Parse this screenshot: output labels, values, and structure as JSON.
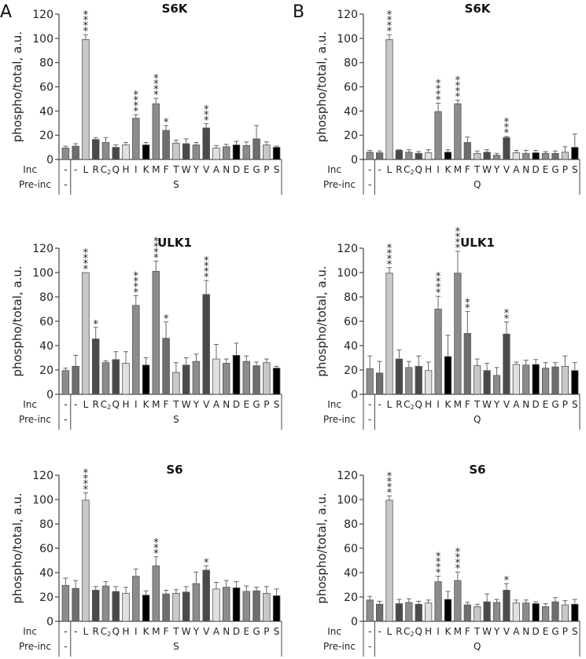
{
  "panels": [
    {
      "letter": "A",
      "pre_inc": "S"
    },
    {
      "letter": "B",
      "pre_inc": "Q"
    }
  ],
  "row_labels": {
    "inc": "Inc",
    "pre_inc": "Pre-inc",
    "control_dash": "-"
  },
  "bar_colors": [
    "#8c8c8c",
    "#6e6e6e",
    "#c8c8c8",
    "#4a4a4a",
    "#8c8c8c",
    "#4a4a4a",
    "#e0e0e0",
    "#8c8c8c",
    "#000000",
    "#8c8c8c",
    "#6e6e6e",
    "#c8c8c8",
    "#4a4a4a",
    "#8c8c8c",
    "#4a4a4a",
    "#e0e0e0",
    "#8c8c8c",
    "#000000",
    "#8c8c8c",
    "#6e6e6e",
    "#c8c8c8",
    "#000000"
  ],
  "chart_data": [
    {
      "type": "bar",
      "panel": "A",
      "title": "S6K",
      "ylabel": "phospho/total, a.u.",
      "ylim": [
        0,
        120
      ],
      "yticks": [
        0,
        20,
        40,
        60,
        80,
        100,
        120
      ],
      "categories": [
        "-",
        "-",
        "L",
        "R",
        "C2",
        "Q",
        "H",
        "I",
        "K",
        "M",
        "F",
        "T",
        "W",
        "Y",
        "V",
        "A",
        "N",
        "D",
        "E",
        "G",
        "P",
        "S"
      ],
      "pre_inc": [
        "-",
        "S",
        "S",
        "S",
        "S",
        "S",
        "S",
        "S",
        "S",
        "S",
        "S",
        "S",
        "S",
        "S",
        "S",
        "S",
        "S",
        "S",
        "S",
        "S",
        "S",
        "S"
      ],
      "values": [
        9.5,
        11,
        99,
        16.5,
        14,
        10,
        12,
        34,
        12,
        46,
        24,
        13.5,
        13,
        12,
        26,
        9.5,
        10.5,
        12,
        11.5,
        17,
        12,
        10
      ],
      "errors": [
        1.5,
        2,
        4,
        1.5,
        4,
        2,
        2,
        3,
        2,
        4.5,
        4,
        2.5,
        4,
        2,
        3.5,
        2,
        2,
        3,
        3,
        11,
        2.5,
        1
      ],
      "significance": [
        "",
        "",
        "****",
        "",
        "",
        "",
        "",
        "****",
        "",
        "****",
        "*",
        "",
        "",
        "",
        "***",
        "",
        "",
        "",
        "",
        "",
        "",
        ""
      ]
    },
    {
      "type": "bar",
      "panel": "B",
      "title": "S6K",
      "ylabel": "phospho/total, a.u.",
      "ylim": [
        0,
        120
      ],
      "yticks": [
        0,
        20,
        40,
        60,
        80,
        100,
        120
      ],
      "categories": [
        "-",
        "-",
        "L",
        "R",
        "C2",
        "Q",
        "H",
        "I",
        "K",
        "M",
        "F",
        "T",
        "W",
        "Y",
        "V",
        "A",
        "N",
        "D",
        "E",
        "G",
        "P",
        "S"
      ],
      "pre_inc": [
        "-",
        "Q",
        "Q",
        "Q",
        "Q",
        "Q",
        "Q",
        "Q",
        "Q",
        "Q",
        "Q",
        "Q",
        "Q",
        "Q",
        "Q",
        "Q",
        "Q",
        "Q",
        "Q",
        "Q",
        "Q",
        "Q"
      ],
      "values": [
        6,
        5.5,
        99,
        7.5,
        6,
        5,
        5.5,
        39.5,
        6,
        46,
        14,
        5,
        6,
        3.5,
        18,
        5.5,
        5,
        5.5,
        5,
        5,
        6,
        10
      ],
      "errors": [
        1.5,
        1.5,
        4,
        0.5,
        2,
        1.5,
        2.5,
        7,
        2,
        3,
        4.5,
        2,
        2,
        1.5,
        1,
        2,
        2.5,
        2,
        1.5,
        2,
        4.5,
        11
      ],
      "significance": [
        "",
        "",
        "****",
        "",
        "",
        "",
        "",
        "****",
        "",
        "****",
        "",
        "",
        "",
        "",
        "***",
        "",
        "",
        "",
        "",
        "",
        "",
        ""
      ]
    },
    {
      "type": "bar",
      "panel": "A",
      "title": "ULK1",
      "ylabel": "phospho/total, a.u.",
      "ylim": [
        0,
        120
      ],
      "yticks": [
        0,
        20,
        40,
        60,
        80,
        100,
        120
      ],
      "categories": [
        "-",
        "-",
        "L",
        "R",
        "C2",
        "Q",
        "H",
        "I",
        "K",
        "M",
        "F",
        "T",
        "W",
        "Y",
        "V",
        "A",
        "N",
        "D",
        "E",
        "G",
        "P",
        "S"
      ],
      "pre_inc": [
        "-",
        "S",
        "S",
        "S",
        "S",
        "S",
        "S",
        "S",
        "S",
        "S",
        "S",
        "S",
        "S",
        "S",
        "S",
        "S",
        "S",
        "S",
        "S",
        "S",
        "S",
        "S"
      ],
      "values": [
        19.5,
        23,
        100,
        45.5,
        26,
        28.5,
        25.5,
        73,
        24,
        101,
        46,
        18,
        24,
        27,
        82,
        29,
        25.5,
        32,
        27,
        23.5,
        26,
        21.5
      ],
      "errors": [
        2,
        9,
        0,
        9.5,
        1.5,
        6.5,
        9.5,
        8,
        6,
        8.5,
        13.5,
        8,
        6,
        6,
        11.5,
        12,
        3.5,
        10,
        4.5,
        3,
        3,
        1.5
      ],
      "significance": [
        "",
        "",
        "****",
        "*",
        "",
        "",
        "",
        "****",
        "",
        "****",
        "*",
        "",
        "",
        "",
        "****",
        "",
        "",
        "",
        "",
        "",
        "",
        ""
      ]
    },
    {
      "type": "bar",
      "panel": "B",
      "title": "ULK1",
      "ylabel": "phospho/total, a.u.",
      "ylim": [
        0,
        120
      ],
      "yticks": [
        0,
        20,
        40,
        60,
        80,
        100,
        120
      ],
      "categories": [
        "-",
        "-",
        "L",
        "R",
        "C2",
        "Q",
        "H",
        "I",
        "K",
        "M",
        "F",
        "T",
        "W",
        "Y",
        "V",
        "A",
        "N",
        "D",
        "E",
        "G",
        "P",
        "S"
      ],
      "pre_inc": [
        "-",
        "Q",
        "Q",
        "Q",
        "Q",
        "Q",
        "Q",
        "Q",
        "Q",
        "Q",
        "Q",
        "Q",
        "Q",
        "Q",
        "Q",
        "Q",
        "Q",
        "Q",
        "Q",
        "Q",
        "Q",
        "Q"
      ],
      "values": [
        21,
        17.5,
        99.5,
        29,
        22,
        23,
        19.5,
        70,
        31,
        99.5,
        50,
        23.5,
        19.5,
        15.5,
        49.5,
        24.5,
        24,
        24.5,
        21.5,
        22.5,
        23,
        19.5
      ],
      "errors": [
        10.5,
        9.5,
        4.5,
        7.5,
        5,
        8.5,
        7,
        10.5,
        17.5,
        18,
        18,
        5.5,
        6,
        6.5,
        10,
        2,
        4,
        4,
        4.5,
        3.5,
        8.5,
        6.5
      ],
      "significance": [
        "",
        "",
        "****",
        "",
        "",
        "",
        "",
        "****",
        "",
        "****",
        "**",
        "",
        "",
        "",
        "**",
        "",
        "",
        "",
        "",
        "",
        "",
        ""
      ]
    },
    {
      "type": "bar",
      "panel": "A",
      "title": "S6",
      "ylabel": "phospho/total, a.u.",
      "ylim": [
        0,
        120
      ],
      "yticks": [
        0,
        20,
        40,
        60,
        80,
        100,
        120
      ],
      "categories": [
        "-",
        "-",
        "L",
        "R",
        "C2",
        "Q",
        "H",
        "I",
        "K",
        "M",
        "F",
        "T",
        "W",
        "Y",
        "V",
        "A",
        "N",
        "D",
        "E",
        "G",
        "P",
        "S"
      ],
      "pre_inc": [
        "-",
        "S",
        "S",
        "S",
        "S",
        "S",
        "S",
        "S",
        "S",
        "S",
        "S",
        "S",
        "S",
        "S",
        "S",
        "S",
        "S",
        "S",
        "S",
        "S",
        "S",
        "S"
      ],
      "values": [
        29.5,
        27,
        99.5,
        25.5,
        29,
        24.5,
        23,
        37,
        21.5,
        45.5,
        22.5,
        23,
        24,
        31,
        42,
        26.5,
        28,
        27.5,
        24.5,
        25,
        23,
        21
      ],
      "errors": [
        6,
        6.5,
        6,
        3,
        3.5,
        4,
        5,
        6,
        3.5,
        7.5,
        3,
        3,
        4.5,
        9.5,
        3.5,
        5.5,
        5.5,
        5,
        4.5,
        3,
        5.5,
        5.5
      ],
      "significance": [
        "",
        "",
        "****",
        "",
        "",
        "",
        "",
        "",
        "",
        "***",
        "",
        "",
        "",
        "",
        "*",
        "",
        "",
        "",
        "",
        "",
        "",
        ""
      ]
    },
    {
      "type": "bar",
      "panel": "B",
      "title": "S6",
      "ylabel": "phospho/total, a.u.",
      "ylim": [
        0,
        120
      ],
      "yticks": [
        0,
        20,
        40,
        60,
        80,
        100,
        120
      ],
      "categories": [
        "-",
        "-",
        "L",
        "R",
        "C2",
        "Q",
        "H",
        "I",
        "K",
        "M",
        "F",
        "T",
        "W",
        "Y",
        "V",
        "A",
        "N",
        "D",
        "E",
        "G",
        "P",
        "S"
      ],
      "pre_inc": [
        "-",
        "Q",
        "Q",
        "Q",
        "Q",
        "Q",
        "Q",
        "Q",
        "Q",
        "Q",
        "Q",
        "Q",
        "Q",
        "Q",
        "Q",
        "Q",
        "Q",
        "Q",
        "Q",
        "Q",
        "Q",
        "Q"
      ],
      "values": [
        17.5,
        14,
        99.5,
        14.5,
        15.5,
        14,
        15,
        32.5,
        18,
        33.5,
        13.5,
        12,
        16,
        15.5,
        25.5,
        15,
        15,
        14.5,
        12,
        16,
        13.5,
        14
      ],
      "errors": [
        3,
        2.5,
        3.5,
        3.5,
        3,
        2.5,
        2.5,
        4.5,
        6.5,
        7,
        2,
        2,
        6.5,
        2.5,
        5.5,
        2.5,
        2.5,
        1.5,
        2.5,
        3.5,
        3.5,
        4
      ],
      "significance": [
        "",
        "",
        "****",
        "",
        "",
        "",
        "",
        "****",
        "",
        "****",
        "",
        "",
        "",
        "",
        "*",
        "",
        "",
        "",
        "",
        "",
        "",
        ""
      ]
    }
  ]
}
